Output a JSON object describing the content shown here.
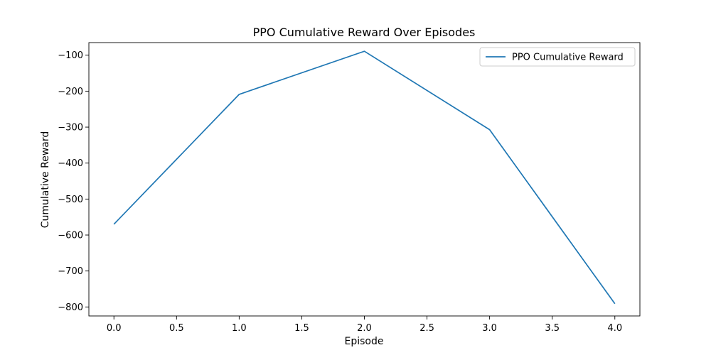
{
  "chart_data": {
    "type": "line",
    "title": "PPO Cumulative Reward Over Episodes",
    "xlabel": "Episode",
    "ylabel": "Cumulative Reward",
    "xlim": [
      -0.2,
      4.2
    ],
    "ylim": [
      -825,
      -65
    ],
    "x_ticks": [
      0.0,
      0.5,
      1.0,
      1.5,
      2.0,
      2.5,
      3.0,
      3.5,
      4.0
    ],
    "x_tick_labels": [
      "0.0",
      "0.5",
      "1.0",
      "1.5",
      "2.0",
      "2.5",
      "3.0",
      "3.5",
      "4.0"
    ],
    "y_ticks": [
      -100,
      -200,
      -300,
      -400,
      -500,
      -600,
      -700,
      -800
    ],
    "y_tick_labels": [
      "−100",
      "−200",
      "−300",
      "−400",
      "−500",
      "−600",
      "−700",
      "−800"
    ],
    "grid": false,
    "legend_position": "upper right",
    "series": [
      {
        "name": "PPO Cumulative Reward",
        "color": "#1f77b4",
        "x": [
          0,
          1,
          2,
          3,
          4
        ],
        "y": [
          -570,
          -209,
          -89,
          -307,
          -791
        ]
      }
    ]
  }
}
